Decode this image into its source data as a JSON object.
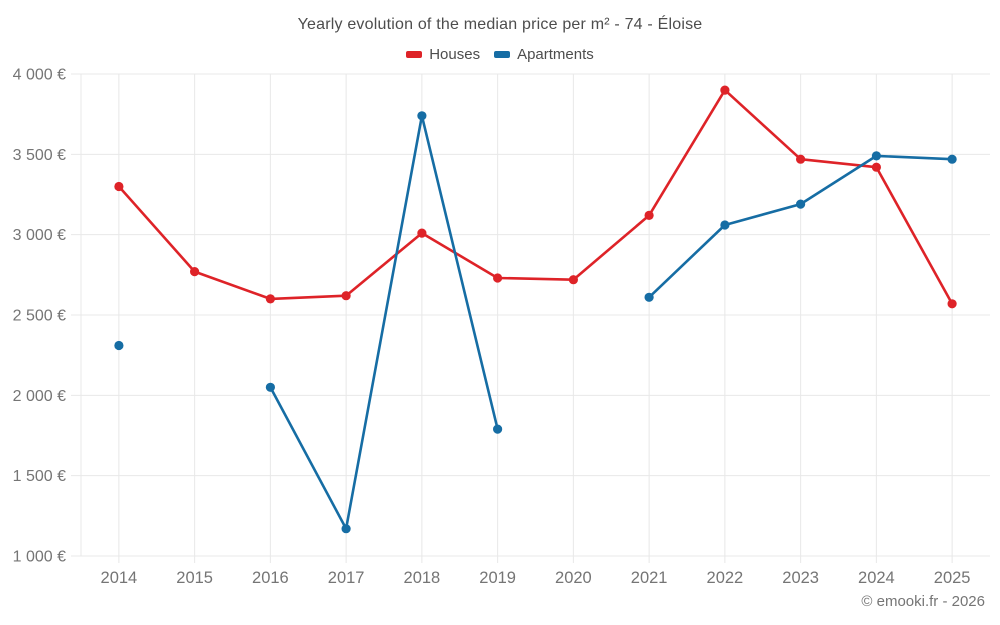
{
  "chart": {
    "title": "Yearly evolution of the median price per m² - 74 - Éloise",
    "attribution": "© emooki.fr - 2026",
    "legend": [
      {
        "label": "Houses",
        "color": "#de2328"
      },
      {
        "label": "Apartments",
        "color": "#166da4"
      }
    ]
  },
  "chart_data": {
    "type": "line",
    "title": "Yearly evolution of the median price per m² - 74 - Éloise",
    "xlabel": "",
    "ylabel": "",
    "categories": [
      "2014",
      "2015",
      "2016",
      "2017",
      "2018",
      "2019",
      "2020",
      "2021",
      "2022",
      "2023",
      "2024",
      "2025"
    ],
    "series": [
      {
        "name": "Houses",
        "color": "#de2328",
        "values": [
          3300,
          2770,
          2600,
          2620,
          3010,
          2730,
          2720,
          3120,
          3900,
          3470,
          3420,
          2570
        ]
      },
      {
        "name": "Apartments",
        "color": "#166da4",
        "values": [
          2310,
          null,
          2050,
          1170,
          3740,
          1790,
          null,
          2610,
          3060,
          3190,
          3490,
          3470
        ]
      }
    ],
    "ylim": [
      1000,
      4000
    ],
    "y_ticks": [
      {
        "value": 1000,
        "label": "1 000 €"
      },
      {
        "value": 1500,
        "label": "1 500 €"
      },
      {
        "value": 2000,
        "label": "2 000 €"
      },
      {
        "value": 2500,
        "label": "2 500 €"
      },
      {
        "value": 3000,
        "label": "3 000 €"
      },
      {
        "value": 3500,
        "label": "3 500 €"
      },
      {
        "value": 4000,
        "label": "4 000 €"
      }
    ],
    "grid": true,
    "grid_color": "#e8e8e8",
    "axis_text_color": "#757575",
    "legend_position": "top"
  }
}
